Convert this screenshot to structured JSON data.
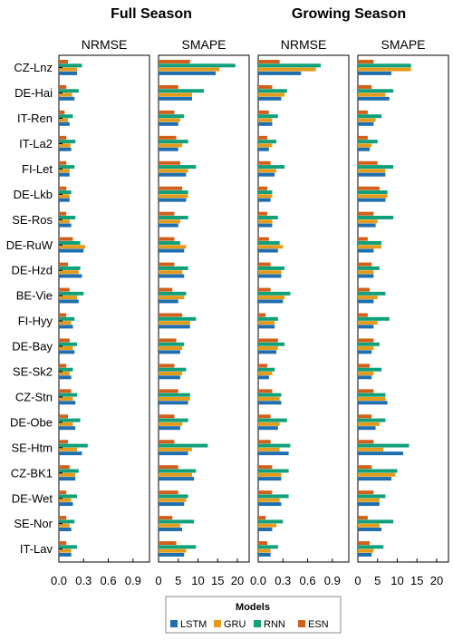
{
  "figure": {
    "group_titles": [
      "Full Season",
      "Growing Season"
    ],
    "legend_title": "Models"
  },
  "chart_data": {
    "type": "bar",
    "orientation": "horizontal",
    "sites": [
      "CZ-Lnz",
      "DE-Hai",
      "IT-Ren",
      "IT-La2",
      "FI-Let",
      "DE-Lkb",
      "SE-Ros",
      "DE-RuW",
      "DE-Hzd",
      "BE-Vie",
      "FI-Hyy",
      "DE-Bay",
      "SE-Sk2",
      "CZ-Stn",
      "DE-Obe",
      "SE-Htm",
      "CZ-BK1",
      "DE-Wet",
      "SE-Nor",
      "IT-Lav"
    ],
    "models": [
      "LSTM",
      "GRU",
      "RNN",
      "ESN"
    ],
    "colors": {
      "LSTM": "#1f6fae",
      "GRU": "#e59b1a",
      "RNN": "#10a07a",
      "ESN": "#d2601a"
    },
    "grid": false,
    "legend_position": "bottom-center",
    "panels": [
      {
        "group": "Full Season",
        "metric": "NRMSE",
        "xlim": [
          0,
          1.1
        ],
        "xticks": [
          "0.0",
          "0.3",
          "0.6",
          "0.9"
        ],
        "series": [
          {
            "name": "LSTM",
            "values": [
              0.22,
              0.19,
              0.13,
              0.15,
              0.13,
              0.13,
              0.15,
              0.3,
              0.28,
              0.24,
              0.17,
              0.19,
              0.15,
              0.2,
              0.2,
              0.28,
              0.2,
              0.17,
              0.15,
              0.15
            ]
          },
          {
            "name": "GRU",
            "values": [
              0.22,
              0.16,
              0.11,
              0.14,
              0.13,
              0.13,
              0.13,
              0.32,
              0.24,
              0.22,
              0.15,
              0.17,
              0.13,
              0.17,
              0.17,
              0.22,
              0.2,
              0.15,
              0.13,
              0.15
            ]
          },
          {
            "name": "RNN",
            "values": [
              0.28,
              0.24,
              0.17,
              0.2,
              0.19,
              0.15,
              0.2,
              0.26,
              0.26,
              0.3,
              0.19,
              0.22,
              0.17,
              0.22,
              0.26,
              0.35,
              0.24,
              0.22,
              0.19,
              0.22
            ]
          },
          {
            "name": "ESN",
            "values": [
              0.11,
              0.09,
              0.07,
              0.09,
              0.09,
              0.09,
              0.09,
              0.17,
              0.11,
              0.13,
              0.09,
              0.13,
              0.09,
              0.15,
              0.11,
              0.11,
              0.13,
              0.09,
              0.09,
              0.09
            ]
          }
        ]
      },
      {
        "group": "Full Season",
        "metric": "SMAPE",
        "xlim": [
          0,
          23
        ],
        "xticks": [
          "0",
          "5",
          "10",
          "15",
          "20"
        ],
        "series": [
          {
            "name": "LSTM",
            "values": [
              14.5,
              8.5,
              5,
              5,
              7,
              7,
              5,
              6.5,
              6.5,
              5,
              8,
              5.5,
              5.5,
              7.5,
              5.5,
              7.5,
              9,
              6.5,
              6,
              6.5
            ]
          },
          {
            "name": "GRU",
            "values": [
              15.5,
              8.5,
              5.5,
              6,
              7.5,
              7.5,
              5.5,
              7,
              6,
              6.5,
              8,
              6,
              6,
              8,
              6,
              8.5,
              8.5,
              7,
              5.5,
              7
            ]
          },
          {
            "name": "RNN",
            "values": [
              19.5,
              11.5,
              6.5,
              7.5,
              9.5,
              7.5,
              7.5,
              5.5,
              7.5,
              7,
              9.5,
              6.5,
              7,
              8,
              7.5,
              12.5,
              9.5,
              7.5,
              9,
              9.5
            ]
          },
          {
            "name": "ESN",
            "values": [
              8,
              5,
              4,
              4.5,
              5.5,
              6,
              4,
              4,
              4,
              3.5,
              6,
              4.5,
              4,
              5,
              4,
              4,
              5,
              5,
              3.5,
              4.5
            ]
          }
        ]
      },
      {
        "group": "Growing Season",
        "metric": "NRMSE",
        "xlim": [
          0,
          1.1
        ],
        "xticks": [
          "0.0",
          "0.3",
          "0.6",
          "0.9"
        ],
        "series": [
          {
            "name": "LSTM",
            "values": [
              0.52,
              0.28,
              0.17,
              0.13,
              0.2,
              0.15,
              0.17,
              0.24,
              0.28,
              0.3,
              0.2,
              0.22,
              0.13,
              0.28,
              0.24,
              0.37,
              0.28,
              0.28,
              0.17,
              0.15
            ]
          },
          {
            "name": "GRU",
            "values": [
              0.7,
              0.32,
              0.17,
              0.17,
              0.22,
              0.17,
              0.17,
              0.3,
              0.28,
              0.32,
              0.2,
              0.24,
              0.17,
              0.26,
              0.26,
              0.26,
              0.28,
              0.26,
              0.22,
              0.15
            ]
          },
          {
            "name": "RNN",
            "values": [
              0.76,
              0.35,
              0.24,
              0.22,
              0.32,
              0.17,
              0.24,
              0.26,
              0.32,
              0.39,
              0.24,
              0.32,
              0.2,
              0.28,
              0.35,
              0.39,
              0.37,
              0.37,
              0.3,
              0.24
            ]
          },
          {
            "name": "ESN",
            "values": [
              0.26,
              0.17,
              0.13,
              0.11,
              0.15,
              0.11,
              0.11,
              0.13,
              0.15,
              0.15,
              0.09,
              0.24,
              0.11,
              0.17,
              0.15,
              0.15,
              0.17,
              0.17,
              0.09,
              0.11
            ]
          }
        ]
      },
      {
        "group": "Growing Season",
        "metric": "SMAPE",
        "xlim": [
          0,
          23
        ],
        "xticks": [
          "0",
          "5",
          "10",
          "15",
          "20"
        ],
        "series": [
          {
            "name": "LSTM",
            "values": [
              8.5,
              8,
              4,
              3,
              7,
              7,
              4.5,
              4,
              4,
              4,
              4,
              3.5,
              3.5,
              7.5,
              4.5,
              11.5,
              8.5,
              5.5,
              6,
              3.5
            ]
          },
          {
            "name": "GRU",
            "values": [
              13.5,
              7,
              4.5,
              3.5,
              7,
              7.5,
              5,
              6,
              4,
              5,
              5,
              4,
              4,
              7,
              5.5,
              6.5,
              9.5,
              5.5,
              5.5,
              4
            ]
          },
          {
            "name": "RNN",
            "values": [
              13.5,
              9,
              6,
              5,
              9,
              7.5,
              9,
              6,
              5.5,
              7,
              8,
              5.5,
              6,
              7,
              7,
              13,
              10,
              7,
              9,
              6.5
            ]
          },
          {
            "name": "ESN",
            "values": [
              4,
              3.5,
              2.5,
              2.5,
              5,
              5.5,
              4,
              2.5,
              3.5,
              3,
              2.5,
              4,
              3,
              4,
              3.5,
              4,
              3.5,
              4,
              2.5,
              3
            ]
          }
        ]
      }
    ]
  }
}
